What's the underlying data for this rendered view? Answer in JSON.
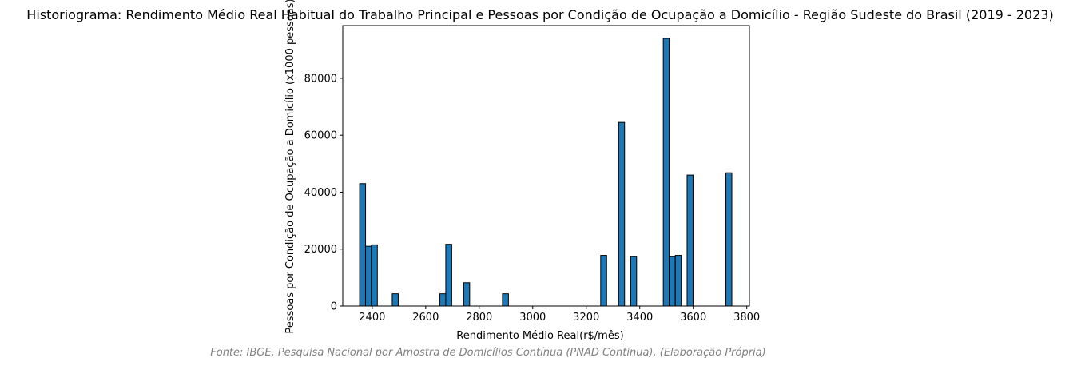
{
  "chart_data": {
    "type": "bar",
    "title": "Historiograma: Rendimento Médio Real Habitual do Trabalho Principal e Pessoas por Condição de Ocupação a Domicílio - Região Sudeste do Brasil (2019 - 2023)",
    "xlabel": "Rendimento Médio Real(r$/mês)",
    "ylabel": "Pessoas por Condição de Ocupação a Domicílio (x1000 pessoas)",
    "xlim": [
      2290,
      3810
    ],
    "ylim": [
      0,
      98500
    ],
    "xticks": [
      2400,
      2600,
      2800,
      3000,
      3200,
      3400,
      3600,
      3800
    ],
    "yticks": [
      0,
      20000,
      40000,
      60000,
      80000
    ],
    "bin_width": 22.3,
    "bar_color": "#1f77b4",
    "edge_color": "#000000",
    "bins": [
      {
        "x": 2353,
        "value": 43000
      },
      {
        "x": 2375,
        "value": 21000
      },
      {
        "x": 2397,
        "value": 21500
      },
      {
        "x": 2475,
        "value": 4300
      },
      {
        "x": 2653,
        "value": 4300
      },
      {
        "x": 2675,
        "value": 21700
      },
      {
        "x": 2742,
        "value": 8200
      },
      {
        "x": 2887,
        "value": 4300
      },
      {
        "x": 3254,
        "value": 17800
      },
      {
        "x": 3321,
        "value": 64500
      },
      {
        "x": 3366,
        "value": 17500
      },
      {
        "x": 3488,
        "value": 94000
      },
      {
        "x": 3510,
        "value": 17500
      },
      {
        "x": 3533,
        "value": 17800
      },
      {
        "x": 3577,
        "value": 46000
      },
      {
        "x": 3722,
        "value": 46800
      }
    ]
  },
  "footer": {
    "source": "Fonte: IBGE, Pesquisa Nacional por Amostra de Domicílios Contínua (PNAD Contínua), (Elaboração Própria)"
  }
}
